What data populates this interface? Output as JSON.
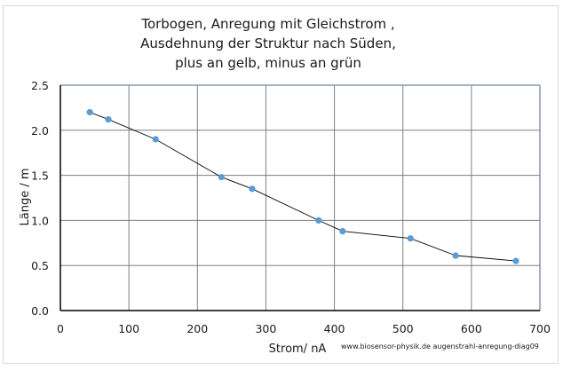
{
  "chart_data": {
    "type": "line",
    "title": "Torbogen, Anregung mit Gleichstrom , Ausdehnung der Struktur nach Süden, plus an gelb, minus an grün",
    "title_lines": [
      "Torbogen, Anregung mit Gleichstrom ,",
      "Ausdehnung der Struktur nach Süden,",
      "plus an gelb, minus an grün"
    ],
    "xlabel": "Strom/ nA",
    "ylabel": "Länge / m",
    "xlim": [
      0,
      700
    ],
    "ylim": [
      0,
      2.5
    ],
    "xticks": [
      "0",
      "100",
      "200",
      "300",
      "400",
      "500",
      "600",
      "700"
    ],
    "yticks": [
      "0.0",
      "0.5",
      "1.0",
      "1.5",
      "2.0",
      "2.5"
    ],
    "grid": true,
    "legend": null,
    "annotation": "www.biosensor-physik.de augenstrahl-anregung-diag09",
    "series": [
      {
        "name": "Länge",
        "marker_color": "#5b9bd5",
        "line_color": "#000000",
        "x": [
          43,
          70,
          139,
          235,
          280,
          377,
          412,
          511,
          577,
          665
        ],
        "y": [
          2.2,
          2.12,
          1.9,
          1.48,
          1.35,
          1.0,
          0.88,
          0.8,
          0.61,
          0.55
        ]
      }
    ]
  },
  "colors": {
    "marker": "#5b9bd5",
    "line": "#000000",
    "grid": "#7f7f7f",
    "plot_border": "#8497b0",
    "axis": "#000000"
  }
}
